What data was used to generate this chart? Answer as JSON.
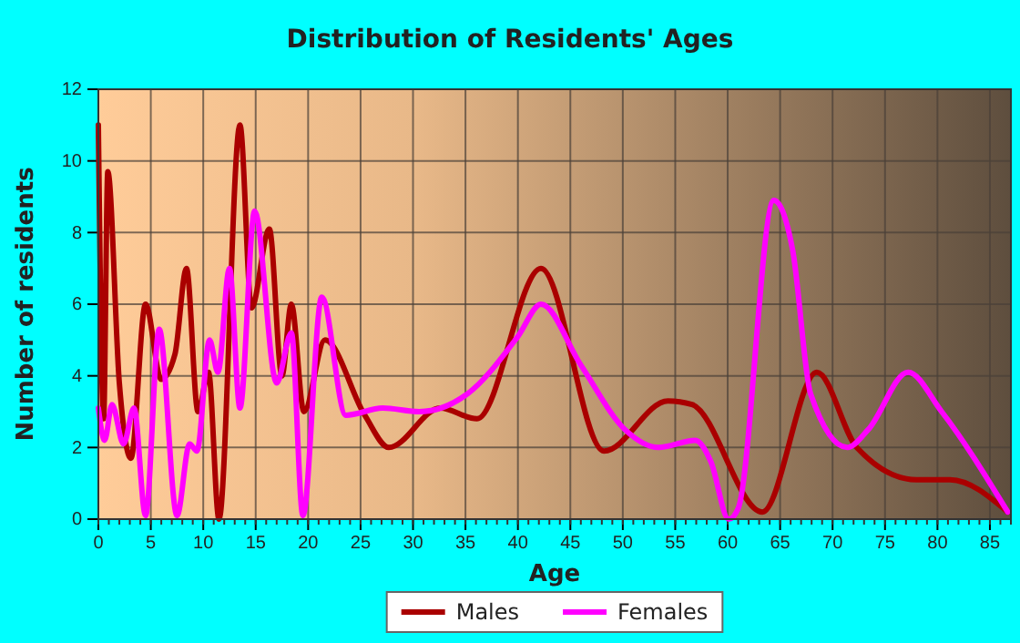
{
  "chart_data": {
    "type": "line",
    "title": "Distribution of Residents' Ages",
    "xlabel": "Age",
    "ylabel": "Number of residents",
    "xlim": [
      0,
      87
    ],
    "xticks": [
      0,
      5,
      10,
      15,
      20,
      25,
      30,
      35,
      40,
      45,
      50,
      55,
      60,
      65,
      70,
      75,
      80,
      85
    ],
    "ylim": [
      0,
      12
    ],
    "yticks": [
      0,
      2,
      4,
      6,
      8,
      10,
      12
    ],
    "grid": true,
    "legend": "bottom",
    "line_style": "solid",
    "series": [
      {
        "name": "Males",
        "color": "#aa0000",
        "x": [
          0,
          0.5,
          0.9,
          2,
          3.1,
          4.5,
          6,
          7.3,
          8.4,
          9.5,
          10.5,
          11.5,
          13.5,
          14.6,
          16.3,
          17.5,
          18.4,
          19.6,
          21.6,
          25.4,
          27.7,
          32.6,
          36.1,
          42.2,
          48.2,
          54.3,
          56.6,
          63.3,
          68.5,
          72.3,
          78,
          81.2,
          86.7
        ],
        "values": [
          11,
          2.8,
          9.7,
          3.8,
          1.7,
          6,
          3.9,
          4.6,
          7,
          3,
          4.1,
          0,
          11,
          5.9,
          8.1,
          4,
          6,
          3,
          5,
          2.9,
          2,
          3.1,
          2.8,
          7,
          1.9,
          3.3,
          3.2,
          0.2,
          4.1,
          2,
          1.1,
          1.1,
          0.2
        ]
      },
      {
        "name": "Females",
        "color": "#ff00ff",
        "x": [
          0,
          0.6,
          1.3,
          2.4,
          3.4,
          4.5,
          5.8,
          7.5,
          8.7,
          9.4,
          10.6,
          11.4,
          12.5,
          13.5,
          14.9,
          17,
          18.4,
          19.5,
          21.3,
          23.6,
          27.1,
          30.6,
          35.2,
          40,
          42.2,
          46,
          50.2,
          53.4,
          56.9,
          58.4,
          60.1,
          61,
          64.4,
          66.2,
          67.9,
          71.4,
          73.4,
          77.2,
          80.4,
          86.7
        ],
        "values": [
          3.1,
          2.2,
          3.2,
          2.1,
          3.1,
          0.1,
          5.3,
          0.1,
          2.1,
          1.9,
          5,
          4.1,
          7,
          3.1,
          8.6,
          3.8,
          5.2,
          0.1,
          6.2,
          2.9,
          3.1,
          3,
          3.5,
          5.1,
          6,
          4.3,
          2.5,
          2,
          2.2,
          1.6,
          0,
          0.3,
          8.9,
          7.5,
          3.5,
          2,
          2.5,
          4.1,
          3,
          0.2
        ]
      }
    ]
  }
}
